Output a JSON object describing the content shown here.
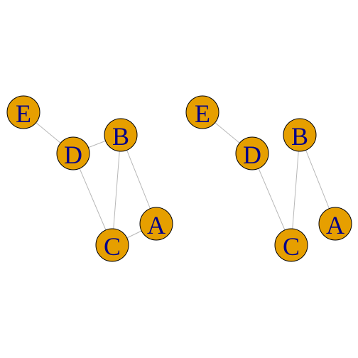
{
  "colors": {
    "background": "#ffffff",
    "node_fill": "#E69F00",
    "node_stroke": "#000000",
    "label_color": "#00008B",
    "edge_color": "#b8b8b8"
  },
  "graphs": [
    {
      "id": "left",
      "nodes": [
        "E",
        "D",
        "B",
        "A",
        "C"
      ],
      "edges": [
        [
          "E",
          "D"
        ],
        [
          "D",
          "B"
        ],
        [
          "D",
          "C"
        ],
        [
          "B",
          "C"
        ],
        [
          "B",
          "A"
        ],
        [
          "A",
          "C"
        ]
      ]
    },
    {
      "id": "right",
      "nodes": [
        "E",
        "D",
        "B",
        "A",
        "C"
      ],
      "edges": [
        [
          "E",
          "D"
        ],
        [
          "D",
          "C"
        ],
        [
          "B",
          "C"
        ],
        [
          "B",
          "A"
        ]
      ]
    }
  ]
}
